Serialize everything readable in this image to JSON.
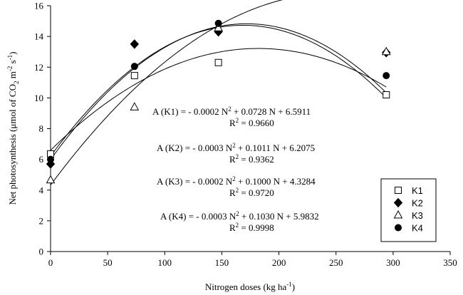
{
  "chart_data": {
    "type": "scatter",
    "xlabel": "Nitrogen doses (kg ha",
    "xlabel_sup": "-1",
    "xlabel_end": ")",
    "ylabel": {
      "p1": "Net photosynthesis (μmol of CO",
      "sub": "2",
      "p2": " m",
      "sup1": "-2",
      "p3": " s",
      "sup2": "-1",
      "p4": ")"
    },
    "xlim": [
      0,
      350
    ],
    "ylim": [
      0,
      16
    ],
    "x_ticks": [
      "0",
      "50",
      "100",
      "150",
      "200",
      "250",
      "300",
      "350"
    ],
    "y_ticks": [
      "0",
      "2",
      "4",
      "6",
      "8",
      "10",
      "12",
      "14",
      "16"
    ],
    "grid": false,
    "legend_position": "bottom-right",
    "series": [
      {
        "name": "K1",
        "marker": "square-open",
        "points": [
          {
            "x": 0,
            "y": 6.35
          },
          {
            "x": 73.5,
            "y": 11.45
          },
          {
            "x": 147,
            "y": 12.3
          },
          {
            "x": 294,
            "y": 10.2
          }
        ],
        "fit": {
          "a": -0.0002,
          "b": 0.0728,
          "c": 6.5911
        },
        "eq": {
          "p1": "A (K1) = - 0.0002 N",
          "sup": "2",
          "p2": " + 0.0728 N + 6.5911"
        },
        "r2": {
          "p1": "R",
          "sup": "2",
          "p2": " = 0.9660"
        }
      },
      {
        "name": "K2",
        "marker": "diamond-filled",
        "points": [
          {
            "x": 0,
            "y": 5.7
          },
          {
            "x": 73.5,
            "y": 13.5
          },
          {
            "x": 147,
            "y": 14.3
          },
          {
            "x": 294,
            "y": 12.95
          }
        ],
        "fit": {
          "a": -0.0003,
          "b": 0.1011,
          "c": 6.2075
        },
        "eq": {
          "p1": "A (K2) = - 0.0003 N",
          "sup": "2",
          "p2": " + 0.1011 N + 6.2075"
        },
        "r2": {
          "p1": "R",
          "sup": "2",
          "p2": " = 0.9362"
        }
      },
      {
        "name": "K3",
        "marker": "triangle-open",
        "points": [
          {
            "x": 0,
            "y": 4.65
          },
          {
            "x": 73.5,
            "y": 9.4
          },
          {
            "x": 147,
            "y": 14.55
          },
          {
            "x": 294,
            "y": 13.0
          }
        ],
        "fit": {
          "a": -0.0002,
          "b": 0.1,
          "c": 4.3284
        },
        "eq": {
          "p1": "A (K3) = - 0.0002 N",
          "sup": "2",
          "p2": " + 0.1000 N + 4.3284"
        },
        "r2": {
          "p1": "R",
          "sup": "2",
          "p2": " = 0.9720"
        }
      },
      {
        "name": "K4",
        "marker": "circle-filled",
        "points": [
          {
            "x": 0,
            "y": 6.0
          },
          {
            "x": 73.5,
            "y": 12.05
          },
          {
            "x": 147,
            "y": 14.85
          },
          {
            "x": 294,
            "y": 11.45
          }
        ],
        "fit": {
          "a": -0.0003,
          "b": 0.103,
          "c": 5.9832
        },
        "eq": {
          "p1": "A (K4) = - 0.0003 N",
          "sup": "2",
          "p2": " + 0.1030 N + 5.9832"
        },
        "r2": {
          "p1": "R",
          "sup": "2",
          "p2": " = 0.9998"
        }
      }
    ]
  }
}
